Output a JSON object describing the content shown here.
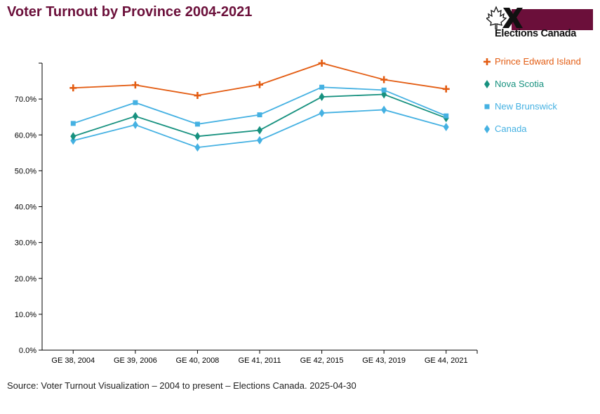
{
  "title": "Voter Turnout by Province 2004-2021",
  "logo": {
    "text": "Elections Canada"
  },
  "source": "Source: Voter Turnout Visualization – 2004 to present – Elections Canada.  2025-04-30",
  "colors": {
    "Prince Edward Island": "#e35c12",
    "Nova Scotia": "#17917f",
    "New Brunswick": "#45b1e2",
    "Canada": "#45b1e2"
  },
  "chart_data": {
    "type": "line",
    "title": "Voter Turnout by Province 2004-2021",
    "xlabel": "",
    "ylabel": "",
    "categories": [
      "GE 38, 2004",
      "GE 39, 2006",
      "GE 40, 2008",
      "GE 41, 2011",
      "GE 42, 2015",
      "GE 43, 2019",
      "GE 44, 2021"
    ],
    "ylim": [
      0,
      80
    ],
    "yticks": [
      "0.0%",
      "10.0%",
      "20.0%",
      "30.0%",
      "40.0%",
      "50.0%",
      "60.0%",
      "70.0%"
    ],
    "legend_position": "right",
    "grid": false,
    "series": [
      {
        "name": "Prince Edward Island",
        "marker": "cross",
        "values": [
          73.1,
          73.9,
          71.0,
          74.0,
          80.0,
          75.4,
          72.8
        ]
      },
      {
        "name": "Nova Scotia",
        "marker": "diamond",
        "values": [
          59.6,
          65.2,
          59.6,
          61.3,
          70.6,
          71.3,
          64.7
        ]
      },
      {
        "name": "New Brunswick",
        "marker": "square",
        "values": [
          63.2,
          69.0,
          63.0,
          65.6,
          73.3,
          72.5,
          65.3
        ]
      },
      {
        "name": "Canada",
        "marker": "diamond",
        "values": [
          58.4,
          62.8,
          56.5,
          58.5,
          66.1,
          67.0,
          62.2
        ]
      }
    ]
  }
}
